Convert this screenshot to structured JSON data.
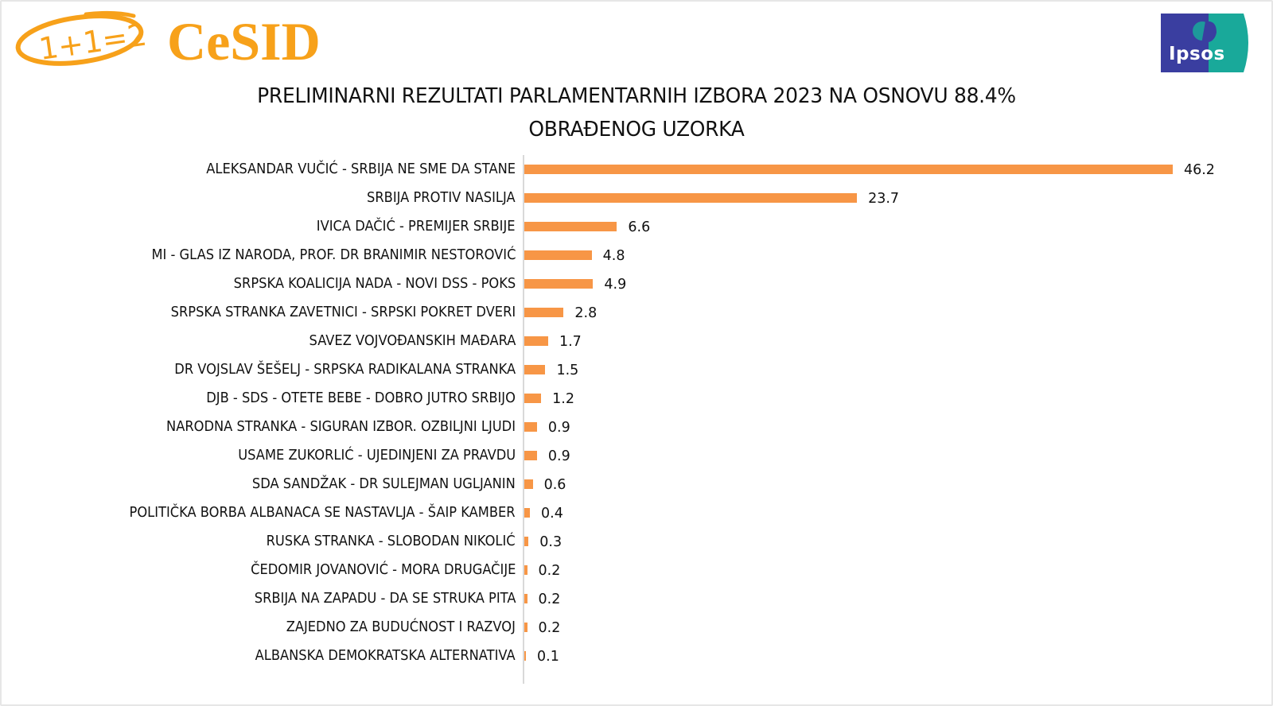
{
  "header": {
    "left_logo_badge": "1+1=2",
    "left_logo_text": "CeSID",
    "right_logo_text": "Ipsos",
    "title_line1": "PRELIMINARNI REZULTATI PARLAMENTARNIH IZBORA 2023 NA OSNOVU 88.4%",
    "title_line2": "OBRAĐENOG UZORKA"
  },
  "colors": {
    "bar": "#f79646",
    "cesid_orange": "#f7a11a",
    "ipsos_blue": "#3a3ea0",
    "ipsos_teal": "#19a99a"
  },
  "chart_data": {
    "type": "bar",
    "orientation": "horizontal",
    "title": "PRELIMINARNI REZULTATI PARLAMENTARNIH IZBORA 2023 NA OSNOVU 88.4% OBRAĐENOG UZORKA",
    "xlabel": "",
    "ylabel": "",
    "xlim": [
      0,
      50
    ],
    "grid": false,
    "legend": "none",
    "data_labels": true,
    "categories": [
      "ALEKSANDAR VUČIĆ - SRBIJA NE SME DA STANE",
      "SRBIJA PROTIV NASILJA",
      "IVICA DAČIĆ - PREMIJER SRBIJE",
      "MI - GLAS IZ NARODA, PROF. DR BRANIMIR NESTOROVIĆ",
      "SRPSKA KOALICIJA NADA - NOVI DSS - POKS",
      "SRPSKA STRANKA ZAVETNICI - SRPSKI POKRET DVERI",
      "SAVEZ VOJVOĐANSKIH MAĐARA",
      "DR VOJSLAV ŠEŠELJ - SRPSKA RADIKALANA STRANKA",
      "DJB - SDS - OTETE BEBE - DOBRO JUTRO SRBIJO",
      "NARODNA STRANKA - SIGURAN IZBOR. OZBILJNI LJUDI",
      "USAME ZUKORLIĆ - UJEDINJENI ZA PRAVDU",
      "SDA SANDŽAK - DR SULEJMAN UGLJANIN",
      "POLITIČKA BORBA ALBANACA SE NASTAVLJA - ŠAIP KAMBER",
      "RUSKA STRANKA - SLOBODAN NIKOLIĆ",
      "ČEDOMIR JOVANOVIĆ - MORA DRUGAČIJE",
      "SRBIJA NA ZAPADU - DA SE STRUKA PITA",
      "ZAJEDNO ZA BUDUĆNOST I RAZVOJ",
      "ALBANSKA DEMOKRATSKA ALTERNATIVA"
    ],
    "values": [
      46.2,
      23.7,
      6.6,
      4.8,
      4.9,
      2.8,
      1.7,
      1.5,
      1.2,
      0.9,
      0.9,
      0.6,
      0.4,
      0.3,
      0.2,
      0.2,
      0.2,
      0.1
    ],
    "value_labels": [
      "46.2",
      "23.7",
      "6.6",
      "4.8",
      "4.9",
      "2.8",
      "1.7",
      "1.5",
      "1.2",
      "0.9",
      "0.9",
      "0.6",
      "0.4",
      "0.3",
      "0.2",
      "0.2",
      "0.2",
      "0.1"
    ]
  }
}
